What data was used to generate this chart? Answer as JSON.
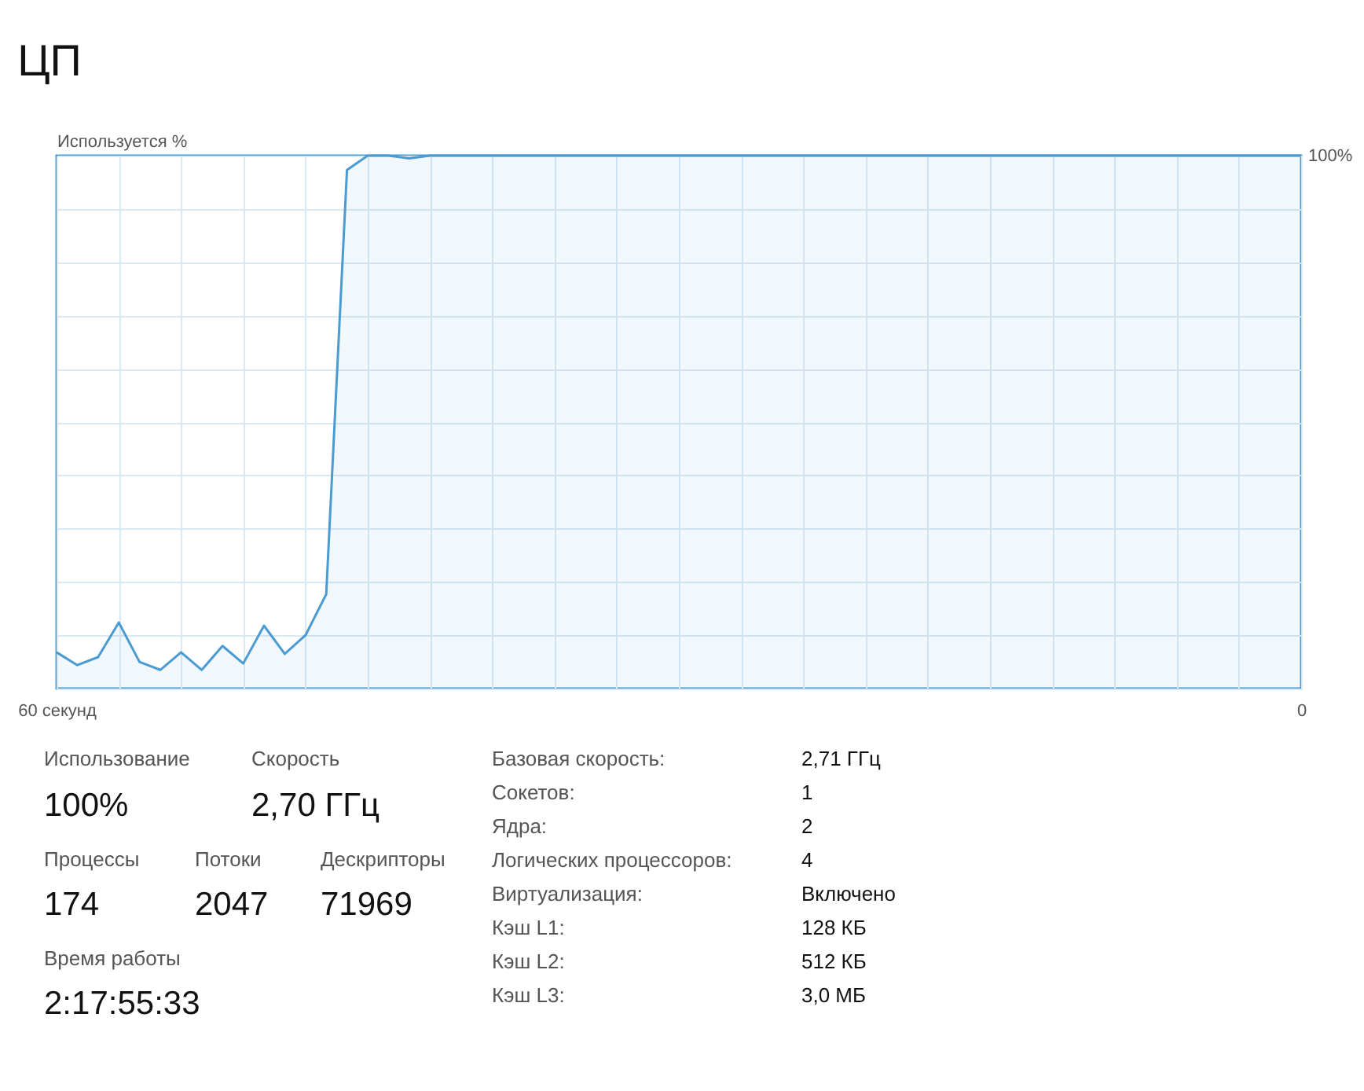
{
  "chart_data": [
    {
      "type": "area",
      "title": "ЦП",
      "ylabel": "Используется %",
      "x": [
        60,
        59,
        58,
        57,
        56,
        55,
        54,
        53,
        52,
        51,
        50,
        49,
        48,
        47,
        46,
        45,
        44,
        43,
        42,
        41,
        0
      ],
      "series": [
        {
          "color": "#4a9bd1",
          "values": [
            6.8,
            4.4,
            5.9,
            12.4,
            5.0,
            3.5,
            6.8,
            3.5,
            8.0,
            4.7,
            11.8,
            6.5,
            10.0,
            17.7,
            97.3,
            100,
            100,
            99.5,
            100,
            100,
            100
          ]
        }
      ],
      "xlim": [
        60,
        0
      ],
      "ylim": [
        0,
        100
      ],
      "xticks": [
        {
          "value": 60,
          "label": "60 секунд"
        },
        {
          "value": 57,
          "label": null
        },
        {
          "value": 54,
          "label": null
        },
        {
          "value": 51,
          "label": null
        },
        {
          "value": 48,
          "label": null
        },
        {
          "value": 45,
          "label": null
        },
        {
          "value": 42,
          "label": null
        },
        {
          "value": 39,
          "label": null
        },
        {
          "value": 36,
          "label": null
        },
        {
          "value": 33,
          "label": null
        },
        {
          "value": 30,
          "label": null
        },
        {
          "value": 27,
          "label": null
        },
        {
          "value": 24,
          "label": null
        },
        {
          "value": 21,
          "label": null
        },
        {
          "value": 18,
          "label": null
        },
        {
          "value": 15,
          "label": null
        },
        {
          "value": 12,
          "label": null
        },
        {
          "value": 9,
          "label": null
        },
        {
          "value": 6,
          "label": null
        },
        {
          "value": 3,
          "label": null
        },
        0
      ],
      "yticks": [
        {
          "value": 0,
          "label": null
        },
        {
          "value": 10,
          "label": null
        },
        {
          "value": 20,
          "label": null
        },
        {
          "value": 30,
          "label": null
        },
        {
          "value": 40,
          "label": null
        },
        {
          "value": 50,
          "label": null
        },
        {
          "value": 60,
          "label": null
        },
        {
          "value": 70,
          "label": null
        },
        {
          "value": 80,
          "label": null
        },
        {
          "value": 90,
          "label": null
        },
        {
          "value": 100,
          "label": "100%"
        }
      ],
      "grid": true
    },
    {
      "type": "other",
      "annotations": [
        "Использование",
        "100%",
        "Скорость",
        "2,70 ГГц",
        "Процессы",
        "174",
        "Потоки",
        "2047",
        "Дескрипторы",
        "71969",
        "Время работы",
        "2:17:55:33",
        "Базовая скорость:",
        "2,71 ГГц",
        "Сокетов:",
        "1",
        "Ядра:",
        "2",
        "Логических процессоров:",
        "4",
        "Виртуализация:",
        "Включено",
        "Кэш L1:",
        "128 КБ",
        "Кэш L2:",
        "512 КБ",
        "Кэш L3:",
        "3,0 МБ"
      ]
    }
  ]
}
